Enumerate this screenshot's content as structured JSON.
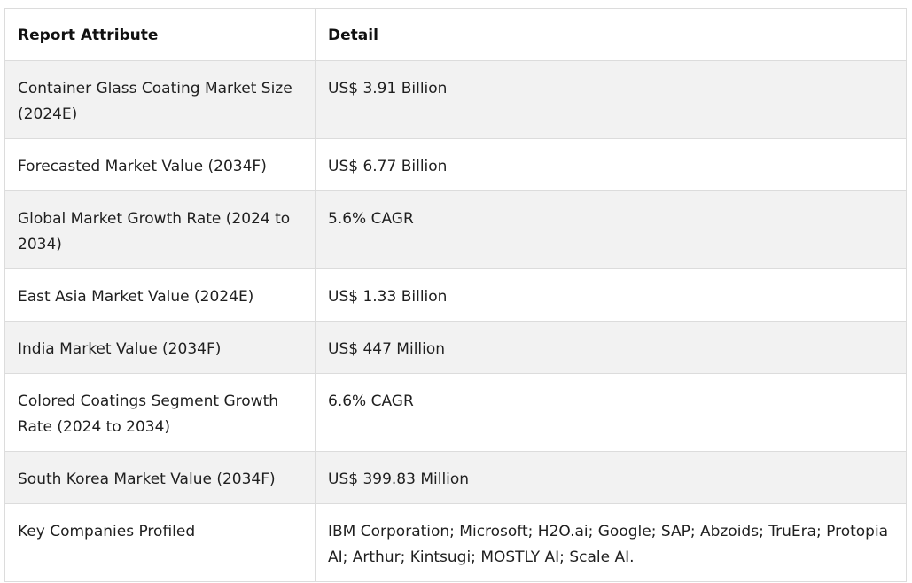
{
  "table": {
    "headers": [
      "Report Attribute",
      "Detail"
    ],
    "rows": [
      [
        "Container Glass Coating Market Size (2024E)",
        "US$ 3.91 Billion"
      ],
      [
        "Forecasted Market Value (2034F)",
        "US$ 6.77 Billion"
      ],
      [
        "Global Market Growth Rate (2024 to 2034)",
        "5.6% CAGR"
      ],
      [
        "East Asia Market Value (2024E)",
        "US$ 1.33 Billion"
      ],
      [
        "India Market Value (2034F)",
        "US$ 447 Million"
      ],
      [
        "Colored Coatings Segment Growth Rate (2024 to 2034)",
        "6.6% CAGR"
      ],
      [
        "South Korea Market Value (2034F)",
        "US$ 399.83 Million"
      ],
      [
        "Key Companies Profiled",
        "IBM Corporation; Microsoft; H2O.ai; Google; SAP; Abzoids; TruEra; Protopia AI; Arthur; Kintsugi; MOSTLY AI; Scale AI."
      ]
    ]
  }
}
